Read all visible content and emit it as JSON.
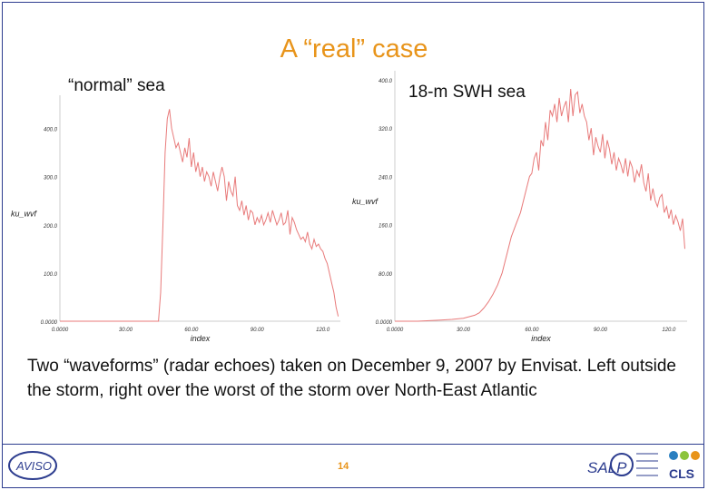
{
  "slide": {
    "title": "A “real” case",
    "caption": "Two “waveforms” (radar echoes) taken on December 9, 2007 by Envisat. Left outside the storm, right over the worst of the storm over North-East Atlantic",
    "page_number": "14",
    "logos": {
      "aviso": "AVISO",
      "salp": "SALP",
      "cls": "CLS"
    }
  },
  "colors": {
    "title": "#e8941a",
    "line": "#e87a7a",
    "frame": "#2d3d8f"
  },
  "chart_data": [
    {
      "type": "line",
      "label": "“normal” sea",
      "xlabel": "index",
      "ylabel": "ku_wvf",
      "xlim": [
        0,
        128
      ],
      "ylim": [
        0,
        450
      ],
      "xticks": [
        0,
        30,
        60,
        90,
        120
      ],
      "xtick_labels": [
        "0.0000",
        "30.00",
        "60.00",
        "90.00",
        "120.0"
      ],
      "yticks": [
        0,
        100,
        200,
        300,
        400
      ],
      "ytick_labels": [
        "0.0000",
        "100.0",
        "200.0",
        "300.0",
        "400.0"
      ],
      "x": [
        0,
        45,
        46,
        47,
        48,
        49,
        50,
        51,
        52,
        53,
        54,
        55,
        56,
        57,
        58,
        59,
        60,
        61,
        62,
        63,
        64,
        65,
        66,
        67,
        68,
        69,
        70,
        71,
        72,
        73,
        74,
        75,
        76,
        77,
        78,
        79,
        80,
        81,
        82,
        83,
        84,
        85,
        86,
        87,
        88,
        89,
        90,
        91,
        92,
        93,
        94,
        95,
        96,
        97,
        98,
        99,
        100,
        101,
        102,
        103,
        104,
        105,
        106,
        107,
        108,
        109,
        110,
        111,
        112,
        113,
        114,
        115,
        116,
        117,
        118,
        119,
        120,
        121,
        122,
        123,
        124,
        125,
        126,
        127
      ],
      "values": [
        0,
        0,
        60,
        200,
        350,
        420,
        440,
        400,
        380,
        360,
        370,
        350,
        330,
        360,
        340,
        380,
        320,
        350,
        310,
        330,
        300,
        320,
        290,
        310,
        300,
        280,
        310,
        290,
        270,
        300,
        320,
        300,
        250,
        290,
        270,
        260,
        300,
        240,
        230,
        250,
        220,
        240,
        210,
        230,
        225,
        200,
        215,
        205,
        220,
        200,
        210,
        225,
        205,
        230,
        215,
        200,
        210,
        225,
        200,
        205,
        230,
        180,
        215,
        205,
        190,
        180,
        170,
        175,
        165,
        185,
        160,
        150,
        170,
        155,
        160,
        150,
        145,
        130,
        120,
        100,
        80,
        60,
        30,
        10
      ]
    },
    {
      "type": "line",
      "label": "18-m SWH sea",
      "xlabel": "index",
      "ylabel": "ku_wvf",
      "xlim": [
        0,
        128
      ],
      "ylim": [
        0,
        400
      ],
      "xticks": [
        0,
        30,
        60,
        90,
        120
      ],
      "xtick_labels": [
        "0.0000",
        "30.00",
        "60.00",
        "90.00",
        "120.0"
      ],
      "yticks": [
        0,
        80,
        160,
        240,
        320,
        400
      ],
      "ytick_labels": [
        "0.0000",
        "80.00",
        "160.0",
        "240.0",
        "320.0",
        "400.0"
      ],
      "x": [
        0,
        10,
        20,
        25,
        30,
        35,
        37,
        39,
        41,
        43,
        45,
        47,
        49,
        51,
        53,
        55,
        57,
        59,
        60,
        61,
        62,
        63,
        64,
        65,
        66,
        67,
        68,
        69,
        70,
        71,
        72,
        73,
        74,
        75,
        76,
        77,
        78,
        79,
        80,
        81,
        82,
        83,
        84,
        85,
        86,
        87,
        88,
        89,
        90,
        91,
        92,
        93,
        94,
        95,
        96,
        97,
        98,
        99,
        100,
        101,
        102,
        103,
        104,
        105,
        106,
        107,
        108,
        109,
        110,
        111,
        112,
        113,
        114,
        115,
        116,
        117,
        118,
        119,
        120,
        121,
        122,
        123,
        124,
        125,
        126,
        127
      ],
      "values": [
        0,
        0,
        2,
        3,
        5,
        10,
        14,
        22,
        32,
        45,
        60,
        80,
        110,
        140,
        160,
        180,
        210,
        240,
        245,
        270,
        280,
        250,
        300,
        290,
        330,
        300,
        350,
        340,
        360,
        330,
        370,
        340,
        355,
        365,
        330,
        385,
        340,
        375,
        380,
        345,
        360,
        340,
        330,
        300,
        320,
        275,
        305,
        290,
        280,
        310,
        270,
        300,
        285,
        260,
        280,
        250,
        270,
        260,
        245,
        270,
        240,
        265,
        255,
        230,
        250,
        240,
        260,
        230,
        215,
        245,
        200,
        220,
        200,
        190,
        205,
        210,
        180,
        190,
        170,
        185,
        160,
        175,
        165,
        150,
        170,
        120
      ]
    }
  ]
}
